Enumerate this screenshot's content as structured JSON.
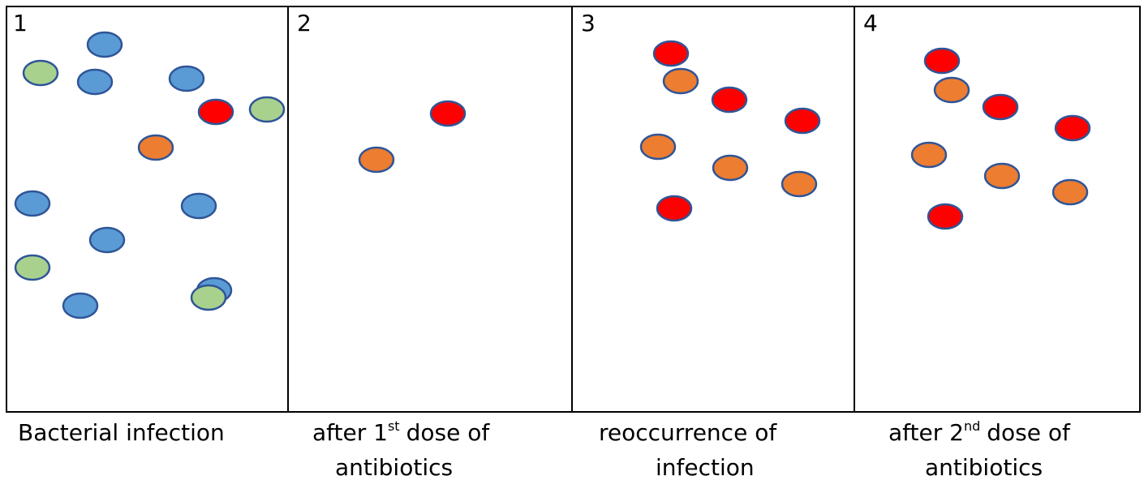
{
  "panels": [
    {
      "number": "1",
      "caption": {
        "line1": "Bacterial infection"
      }
    },
    {
      "number": "2",
      "caption": {
        "line1": "after 1",
        "sup": "st",
        "line1_rest": "dose of",
        "line2": "antibiotics"
      }
    },
    {
      "number": "3",
      "caption": {
        "line1": "reoccurrence of",
        "line2": "infection"
      }
    },
    {
      "number": "4",
      "caption": {
        "line1": "after 2",
        "sup": "nd",
        "line1_rest": "dose of",
        "line2": "antibiotics"
      }
    }
  ]
}
